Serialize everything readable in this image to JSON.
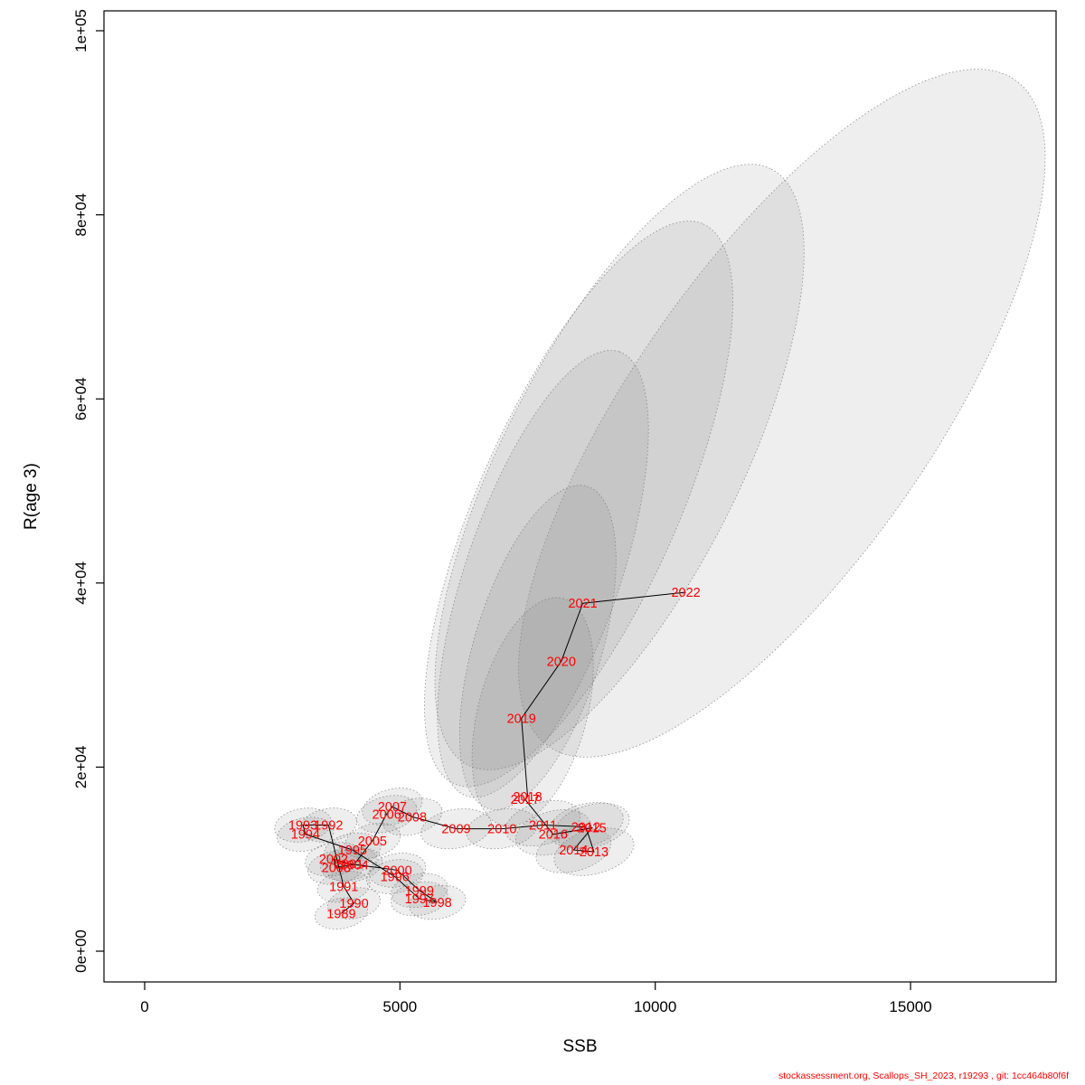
{
  "page": {
    "background": "#ffffff"
  },
  "footer": {
    "text": "stockassessment.org, Scallops_SH_2023, r19293 , git: 1cc464b80f6f",
    "color": "#ff0000"
  },
  "chart_data": {
    "type": "scatter",
    "title": "",
    "xlabel": "SSB",
    "ylabel": "R(age 3)",
    "xlim": [
      0,
      17800
    ],
    "ylim": [
      0,
      100000
    ],
    "grid": false,
    "legend": "none",
    "x_ticks": [
      0,
      5000,
      10000,
      15000
    ],
    "x_tick_labels": [
      "0",
      "5000",
      "10000",
      "15000"
    ],
    "y_ticks": [
      0,
      20000,
      40000,
      60000,
      80000,
      100000
    ],
    "y_tick_labels": [
      "0e+00",
      "2e+04",
      "4e+04",
      "6e+04",
      "8e+04",
      "1e+05"
    ],
    "point_label_color": "#ff0000",
    "path_color": "#000000",
    "ellipse_fill": "rgba(120,120,120,0.13)",
    "ellipse_stroke": "rgba(130,130,130,0.9)",
    "points": [
      {
        "year": 1989,
        "ssb": 3850,
        "r": 4100
      },
      {
        "year": 1990,
        "ssb": 4100,
        "r": 5200
      },
      {
        "year": 1991,
        "ssb": 3900,
        "r": 7000
      },
      {
        "year": 1992,
        "ssb": 3600,
        "r": 13700
      },
      {
        "year": 1993,
        "ssb": 3100,
        "r": 13700
      },
      {
        "year": 1994,
        "ssb": 3150,
        "r": 12700
      },
      {
        "year": 1995,
        "ssb": 4070,
        "r": 11000
      },
      {
        "year": 1996,
        "ssb": 4900,
        "r": 8100
      },
      {
        "year": 1997,
        "ssb": 5380,
        "r": 5700
      },
      {
        "year": 1998,
        "ssb": 5730,
        "r": 5300
      },
      {
        "year": 1999,
        "ssb": 5380,
        "r": 6600
      },
      {
        "year": 2000,
        "ssb": 4950,
        "r": 8800
      },
      {
        "year": 2001,
        "ssb": 4000,
        "r": 9500
      },
      {
        "year": 2002,
        "ssb": 3700,
        "r": 10000
      },
      {
        "year": 2003,
        "ssb": 3750,
        "r": 9100
      },
      {
        "year": 2004,
        "ssb": 4100,
        "r": 9400
      },
      {
        "year": 2005,
        "ssb": 4460,
        "r": 12000
      },
      {
        "year": 2006,
        "ssb": 4740,
        "r": 14900
      },
      {
        "year": 2007,
        "ssb": 4850,
        "r": 15700
      },
      {
        "year": 2008,
        "ssb": 5240,
        "r": 14600
      },
      {
        "year": 2009,
        "ssb": 6100,
        "r": 13300
      },
      {
        "year": 2010,
        "ssb": 7000,
        "r": 13300
      },
      {
        "year": 2011,
        "ssb": 7800,
        "r": 13700
      },
      {
        "year": 2012,
        "ssb": 8640,
        "r": 13500
      },
      {
        "year": 2013,
        "ssb": 8800,
        "r": 10800
      },
      {
        "year": 2014,
        "ssb": 8400,
        "r": 11000
      },
      {
        "year": 2015,
        "ssb": 8760,
        "r": 13400
      },
      {
        "year": 2016,
        "ssb": 8000,
        "r": 12700
      },
      {
        "year": 2017,
        "ssb": 7450,
        "r": 16500
      },
      {
        "year": 2018,
        "ssb": 7500,
        "r": 16800
      },
      {
        "year": 2019,
        "ssb": 7380,
        "r": 25300
      },
      {
        "year": 2020,
        "ssb": 8160,
        "r": 31500
      },
      {
        "year": 2021,
        "ssb": 8580,
        "r": 37800
      },
      {
        "year": 2022,
        "ssb": 10600,
        "r": 39000
      }
    ],
    "confidence_ellipses": [
      {
        "year": 1989,
        "cx": 3850,
        "cy": 4100,
        "a": 520,
        "b": 1650,
        "angle": -10
      },
      {
        "year": 1990,
        "cx": 4100,
        "cy": 5200,
        "a": 520,
        "b": 1650,
        "angle": -10
      },
      {
        "year": 1991,
        "cx": 3900,
        "cy": 7000,
        "a": 520,
        "b": 1650,
        "angle": -10
      },
      {
        "year": 1992,
        "cx": 3600,
        "cy": 13700,
        "a": 560,
        "b": 1800,
        "angle": -10
      },
      {
        "year": 1993,
        "cx": 3100,
        "cy": 13700,
        "a": 560,
        "b": 1800,
        "angle": -10
      },
      {
        "year": 1994,
        "cx": 3150,
        "cy": 12700,
        "a": 560,
        "b": 1800,
        "angle": -10
      },
      {
        "year": 1995,
        "cx": 4070,
        "cy": 11000,
        "a": 560,
        "b": 1800,
        "angle": -10
      },
      {
        "year": 1996,
        "cx": 4900,
        "cy": 8100,
        "a": 560,
        "b": 1800,
        "angle": -10
      },
      {
        "year": 1997,
        "cx": 5380,
        "cy": 5700,
        "a": 560,
        "b": 1800,
        "angle": -10
      },
      {
        "year": 1998,
        "ssb_note": "",
        "cx": 5730,
        "cy": 5300,
        "a": 560,
        "b": 1800,
        "angle": -10
      },
      {
        "year": 1999,
        "cx": 5380,
        "cy": 6600,
        "a": 560,
        "b": 1800,
        "angle": -10
      },
      {
        "year": 2000,
        "cx": 4950,
        "cy": 8800,
        "a": 560,
        "b": 1800,
        "angle": -10
      },
      {
        "year": 2001,
        "cx": 4000,
        "cy": 9500,
        "a": 560,
        "b": 1800,
        "angle": -10
      },
      {
        "year": 2002,
        "cx": 3700,
        "cy": 10000,
        "a": 560,
        "b": 1800,
        "angle": -10
      },
      {
        "year": 2003,
        "cx": 3750,
        "cy": 9100,
        "a": 560,
        "b": 1800,
        "angle": -10
      },
      {
        "year": 2004,
        "cx": 4100,
        "cy": 9400,
        "a": 560,
        "b": 1800,
        "angle": -10
      },
      {
        "year": 2005,
        "cx": 4460,
        "cy": 12000,
        "a": 560,
        "b": 1800,
        "angle": -15
      },
      {
        "year": 2006,
        "cx": 4740,
        "cy": 14900,
        "a": 600,
        "b": 1900,
        "angle": -15
      },
      {
        "year": 2007,
        "cx": 4850,
        "cy": 15700,
        "a": 600,
        "b": 1900,
        "angle": -15
      },
      {
        "year": 2008,
        "cx": 5240,
        "cy": 14600,
        "a": 600,
        "b": 1900,
        "angle": -15
      },
      {
        "year": 2009,
        "cx": 6100,
        "cy": 13300,
        "a": 700,
        "b": 2100,
        "angle": -10
      },
      {
        "year": 2010,
        "cx": 7000,
        "cy": 13300,
        "a": 700,
        "b": 2100,
        "angle": -10
      },
      {
        "year": 2011,
        "cx": 7800,
        "cy": 13900,
        "a": 750,
        "b": 2300,
        "angle": -15
      },
      {
        "year": 2012,
        "cx": 8640,
        "cy": 13700,
        "a": 750,
        "b": 2300,
        "angle": -15
      },
      {
        "year": 2013,
        "cx": 8800,
        "cy": 10800,
        "a": 800,
        "b": 2400,
        "angle": -15
      },
      {
        "year": 2014,
        "cx": 8400,
        "cy": 11000,
        "a": 750,
        "b": 2300,
        "angle": -15
      },
      {
        "year": 2015,
        "cx": 8760,
        "cy": 13600,
        "a": 750,
        "b": 2300,
        "angle": -15
      },
      {
        "year": 2016,
        "cx": 8000,
        "cy": 12900,
        "a": 750,
        "b": 2300,
        "angle": -15
      },
      {
        "year": 2017,
        "cx": 7600,
        "cy": 26000,
        "a": 2300,
        "b": 5900,
        "angle": -75
      },
      {
        "year": 2018,
        "cx": 7700,
        "cy": 33000,
        "a": 3300,
        "b": 6900,
        "angle": -73
      },
      {
        "year": 2019,
        "cx": 7800,
        "cy": 41000,
        "a": 4600,
        "b": 8350,
        "angle": -71
      },
      {
        "year": 2020,
        "cx": 8500,
        "cy": 48600,
        "a": 6000,
        "b": 10800,
        "angle": -66
      },
      {
        "year": 2021,
        "cx": 9300,
        "cy": 52600,
        "a": 6550,
        "b": 12800,
        "angle": -63
      },
      {
        "year": 2022,
        "cx": 12480,
        "cy": 58450,
        "a": 7965,
        "b": 16200,
        "angle": -55
      }
    ]
  }
}
